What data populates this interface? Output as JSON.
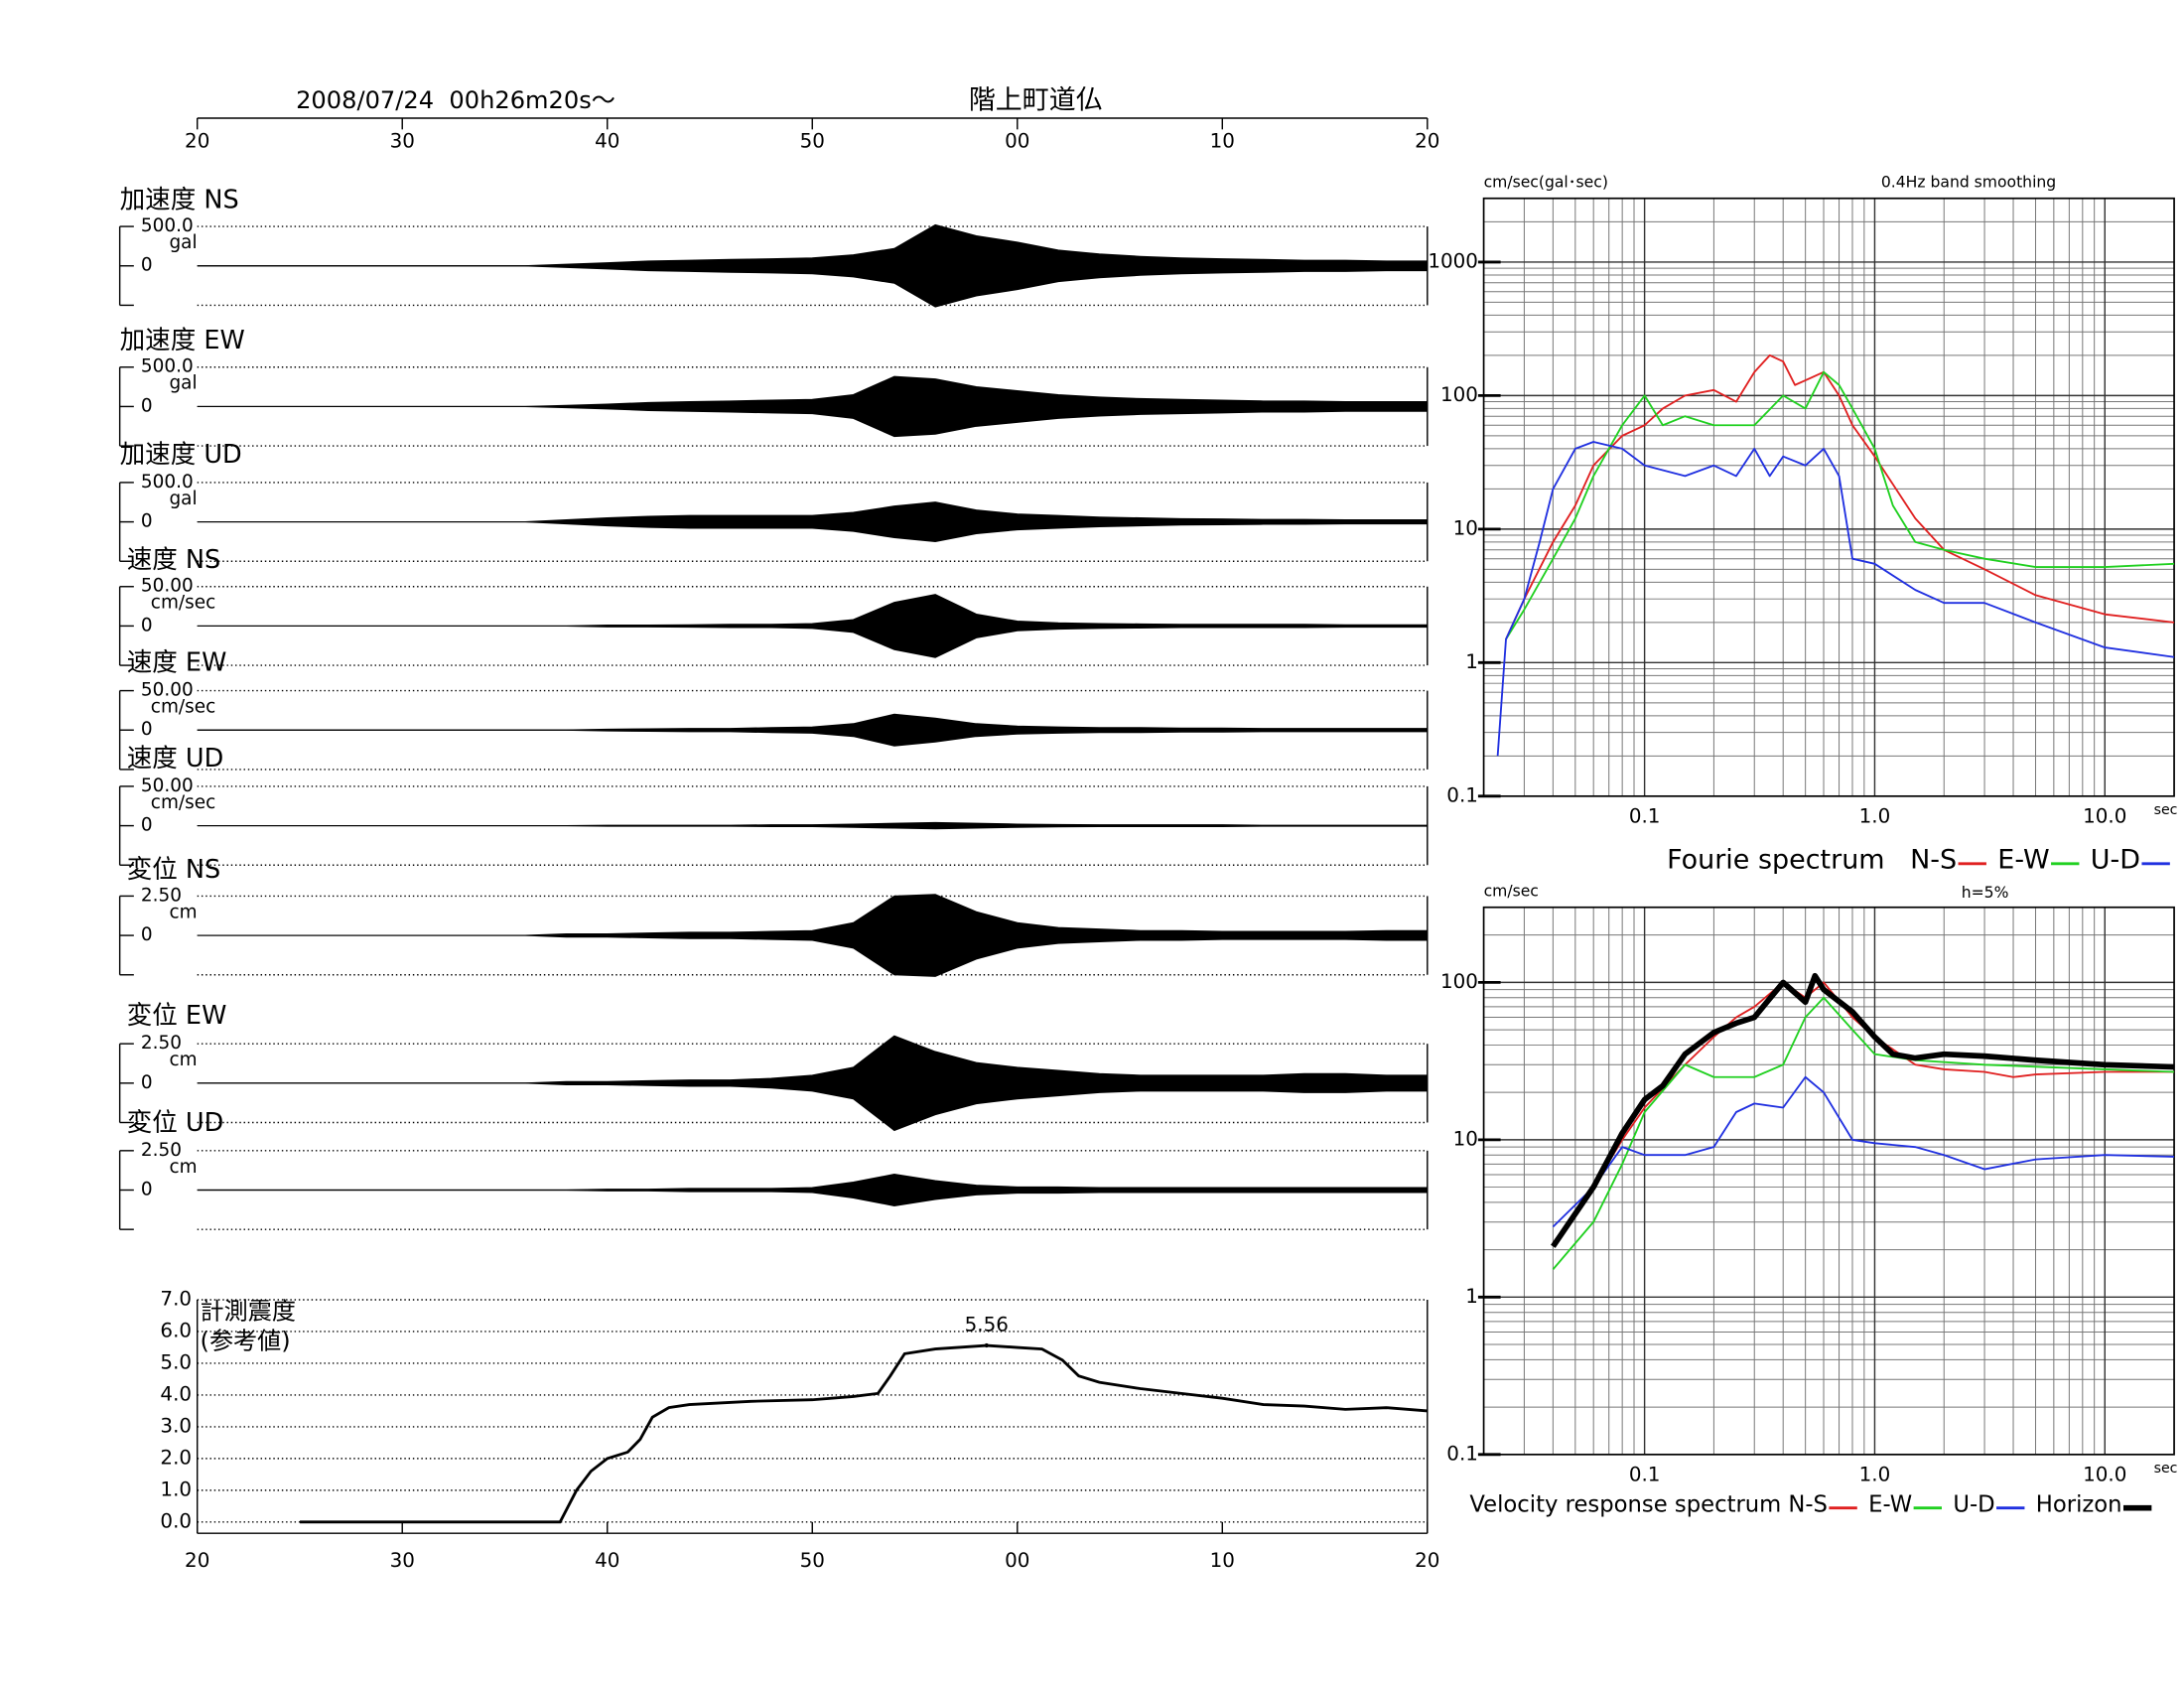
{
  "chart_data": [
    {
      "type": "waveform",
      "title": "2008/07/24  00h26m20s〜",
      "subtitle": "階上町道仏",
      "xlim": [
        0,
        60
      ],
      "xticks": [
        {
          "value": 0,
          "label": "20"
        },
        {
          "value": 10,
          "label": "30"
        },
        {
          "value": 20,
          "label": "40"
        },
        {
          "value": 30,
          "label": "50"
        },
        {
          "value": 40,
          "label": "00"
        },
        {
          "value": 50,
          "label": "10"
        },
        {
          "value": 60,
          "label": "20"
        }
      ],
      "x": [
        0,
        2,
        4,
        6,
        8,
        10,
        12,
        14,
        16,
        18,
        20,
        22,
        24,
        26,
        28,
        30,
        32,
        34,
        36,
        38,
        40,
        42,
        44,
        46,
        48,
        50,
        52,
        54,
        56,
        58,
        60
      ],
      "panels": [
        {
          "name": "加速度 NS",
          "scale": {
            "value": 500,
            "label": "500.0"
          },
          "unit": "gal",
          "zero": 0,
          "values": [
            0,
            0,
            0,
            0,
            0,
            0,
            0,
            0,
            0,
            20,
            40,
            60,
            70,
            80,
            90,
            100,
            140,
            220,
            520,
            380,
            300,
            200,
            150,
            120,
            100,
            90,
            80,
            70,
            70,
            60,
            60
          ]
        },
        {
          "name": "加速度 EW",
          "scale": {
            "value": 500,
            "label": "500.0"
          },
          "unit": "gal",
          "zero": 0,
          "values": [
            0,
            0,
            0,
            0,
            0,
            0,
            0,
            0,
            0,
            15,
            30,
            50,
            60,
            70,
            80,
            90,
            150,
            380,
            350,
            250,
            200,
            150,
            120,
            100,
            90,
            80,
            70,
            70,
            60,
            60,
            60
          ]
        },
        {
          "name": "加速度 UD",
          "scale": {
            "value": 500,
            "label": "500.0"
          },
          "unit": "gal",
          "zero": 0,
          "values": [
            0,
            0,
            0,
            0,
            0,
            0,
            0,
            0,
            0,
            25,
            50,
            70,
            80,
            80,
            80,
            80,
            120,
            200,
            250,
            150,
            100,
            80,
            60,
            50,
            40,
            35,
            30,
            30,
            25,
            25,
            25
          ]
        },
        {
          "name": "速度 NS",
          "scale": {
            "value": 50,
            "label": "50.00"
          },
          "unit": "cm/sec",
          "zero": 0,
          "values": [
            0,
            0,
            0,
            0,
            0,
            0,
            0,
            0,
            0,
            0,
            1,
            1,
            1.5,
            2,
            2,
            3,
            8,
            30,
            40,
            15,
            6,
            4,
            3,
            2.5,
            2,
            2,
            2,
            2,
            1.5,
            1.5,
            1.5
          ]
        },
        {
          "name": "速度 EW",
          "scale": {
            "value": 50,
            "label": "50.00"
          },
          "unit": "cm/sec",
          "zero": 0,
          "values": [
            0,
            0,
            0,
            0,
            0,
            0,
            0,
            0,
            0,
            0,
            1,
            1.5,
            2,
            2,
            3,
            4,
            8,
            20,
            15,
            8,
            5,
            4,
            3,
            3,
            2.5,
            2.5,
            2,
            2,
            2,
            2,
            2
          ]
        },
        {
          "name": "速度 UD",
          "scale": {
            "value": 50,
            "label": "50.00"
          },
          "unit": "cm/sec",
          "zero": 0,
          "values": [
            0,
            0,
            0,
            0,
            0,
            0,
            0,
            0,
            0,
            0,
            0.5,
            0.5,
            0.5,
            0.5,
            1,
            1,
            2,
            3,
            4,
            3,
            2,
            1.5,
            1,
            1,
            1,
            1,
            0.5,
            0.5,
            0.5,
            0.5,
            0.5
          ]
        },
        {
          "name": "変位 NS",
          "scale": {
            "value": 2.5,
            "label": "2.50"
          },
          "unit": "cm",
          "zero": 0,
          "values": [
            0,
            0,
            0,
            0,
            0,
            0,
            0,
            0,
            0,
            0.1,
            0.1,
            0.15,
            0.2,
            0.2,
            0.25,
            0.3,
            0.8,
            2.5,
            2.6,
            1.5,
            0.8,
            0.5,
            0.4,
            0.3,
            0.3,
            0.25,
            0.25,
            0.25,
            0.25,
            0.3,
            0.3
          ]
        },
        {
          "name": "変位 EW",
          "scale": {
            "value": 2.5,
            "label": "2.50"
          },
          "unit": "cm",
          "zero": 0,
          "values": [
            0,
            0,
            0,
            0,
            0,
            0,
            0,
            0,
            0,
            0.1,
            0.1,
            0.15,
            0.2,
            0.2,
            0.3,
            0.5,
            1.0,
            3.0,
            2.0,
            1.3,
            1.0,
            0.8,
            0.6,
            0.5,
            0.5,
            0.5,
            0.5,
            0.6,
            0.6,
            0.5,
            0.5
          ]
        },
        {
          "name": "変位 UD",
          "scale": {
            "value": 2.5,
            "label": "2.50"
          },
          "unit": "cm",
          "zero": 0,
          "values": [
            0,
            0,
            0,
            0,
            0,
            0,
            0,
            0,
            0,
            0,
            0.05,
            0.05,
            0.1,
            0.1,
            0.1,
            0.15,
            0.5,
            1.0,
            0.6,
            0.3,
            0.2,
            0.2,
            0.15,
            0.15,
            0.15,
            0.15,
            0.15,
            0.15,
            0.15,
            0.15,
            0.15
          ]
        }
      ]
    },
    {
      "type": "line",
      "title": "計測震度",
      "subtitle": "(参考値)",
      "xlim": [
        0,
        60
      ],
      "xticks": [
        {
          "value": 0,
          "label": "20"
        },
        {
          "value": 10,
          "label": "30"
        },
        {
          "value": 20,
          "label": "40"
        },
        {
          "value": 30,
          "label": "50"
        },
        {
          "value": 40,
          "label": "00"
        },
        {
          "value": 50,
          "label": "10"
        },
        {
          "value": 60,
          "label": "20"
        }
      ],
      "ylim": [
        0,
        7
      ],
      "yticks": [
        {
          "value": 0,
          "label": "0.0"
        },
        {
          "value": 1,
          "label": "1.0"
        },
        {
          "value": 2,
          "label": "2.0"
        },
        {
          "value": 3,
          "label": "3.0"
        },
        {
          "value": 4,
          "label": "4.0"
        },
        {
          "value": 5,
          "label": "5.0"
        },
        {
          "value": 6,
          "label": "6.0"
        },
        {
          "value": 7,
          "label": "7.0"
        }
      ],
      "grid": true,
      "x": [
        5,
        17.7,
        18.5,
        19.2,
        20,
        21,
        21.6,
        22.2,
        23,
        24,
        27,
        30,
        32,
        33.2,
        33.8,
        34.5,
        36,
        38.5,
        40,
        41.2,
        42.2,
        43,
        44,
        46,
        48,
        50,
        52,
        54,
        56,
        58,
        60
      ],
      "values": [
        0,
        0,
        1.0,
        1.6,
        2.0,
        2.2,
        2.6,
        3.3,
        3.6,
        3.7,
        3.8,
        3.85,
        3.95,
        4.05,
        4.6,
        5.3,
        5.45,
        5.56,
        5.5,
        5.45,
        5.1,
        4.6,
        4.4,
        4.2,
        4.05,
        3.9,
        3.7,
        3.65,
        3.55,
        3.6,
        3.5
      ],
      "peak": {
        "x": 38.5,
        "value": 5.56
      }
    },
    {
      "type": "line",
      "title": "Fourie spectrum",
      "ylabel": "cm/sec(gal･sec)",
      "note": "0.4Hz band smoothing",
      "xlabel": "sec",
      "log": true,
      "grid": true,
      "xlim": [
        0.02,
        20
      ],
      "xticks": [
        0.1,
        {
          "value": 1,
          "label": "1.0"
        },
        {
          "value": 10,
          "label": "10.0"
        }
      ],
      "ylim": [
        0.1,
        3000
      ],
      "yticks": [
        0.1,
        1,
        10,
        100,
        1000
      ],
      "series": [
        {
          "name": "N-S",
          "color": "#e02020",
          "x": [
            0.025,
            0.03,
            0.04,
            0.05,
            0.06,
            0.08,
            0.1,
            0.12,
            0.15,
            0.2,
            0.25,
            0.3,
            0.35,
            0.4,
            0.45,
            0.5,
            0.6,
            0.7,
            0.8,
            1.0,
            1.5,
            2,
            3,
            5,
            10,
            20
          ],
          "values": [
            1.5,
            3,
            8,
            15,
            30,
            50,
            60,
            80,
            100,
            110,
            90,
            150,
            200,
            180,
            120,
            130,
            150,
            100,
            60,
            35,
            12,
            7,
            5,
            3.2,
            2.3,
            2.0
          ]
        },
        {
          "name": "E-W",
          "color": "#20d020",
          "x": [
            0.025,
            0.03,
            0.04,
            0.05,
            0.06,
            0.08,
            0.1,
            0.12,
            0.15,
            0.2,
            0.3,
            0.4,
            0.5,
            0.6,
            0.7,
            0.8,
            1.0,
            1.2,
            1.5,
            2,
            3,
            5,
            10,
            20
          ],
          "values": [
            1.5,
            2.5,
            6,
            12,
            25,
            60,
            100,
            60,
            70,
            60,
            60,
            100,
            80,
            150,
            120,
            80,
            40,
            15,
            8,
            7,
            6,
            5.2,
            5.2,
            5.5
          ]
        },
        {
          "name": "U-D",
          "color": "#2030e0",
          "x": [
            0.023,
            0.025,
            0.03,
            0.035,
            0.04,
            0.05,
            0.06,
            0.08,
            0.1,
            0.15,
            0.2,
            0.25,
            0.3,
            0.35,
            0.4,
            0.5,
            0.6,
            0.7,
            0.8,
            1.0,
            1.5,
            2,
            3,
            5,
            10,
            20
          ],
          "values": [
            0.2,
            1.5,
            3,
            8,
            20,
            40,
            45,
            40,
            30,
            25,
            30,
            25,
            40,
            25,
            35,
            30,
            40,
            25,
            6,
            5.5,
            3.5,
            2.8,
            2.8,
            2,
            1.3,
            1.1
          ]
        }
      ]
    },
    {
      "type": "line",
      "title": "Velocity response spectrum",
      "ylabel": "cm/sec",
      "note": "h=5%",
      "xlabel": "sec",
      "log": true,
      "grid": true,
      "xlim": [
        0.02,
        20
      ],
      "xticks": [
        0.1,
        {
          "value": 1,
          "label": "1.0"
        },
        {
          "value": 10,
          "label": "10.0"
        }
      ],
      "ylim": [
        0.1,
        300
      ],
      "yticks": [
        0.1,
        1,
        10,
        100
      ],
      "series": [
        {
          "name": "N-S",
          "color": "#e02020",
          "x": [
            0.04,
            0.06,
            0.08,
            0.1,
            0.15,
            0.2,
            0.25,
            0.3,
            0.4,
            0.5,
            0.6,
            0.8,
            1.0,
            1.5,
            2,
            3,
            4,
            5,
            10,
            20
          ],
          "values": [
            2.2,
            5,
            10,
            16,
            30,
            45,
            60,
            70,
            100,
            80,
            100,
            60,
            45,
            30,
            28,
            27,
            25,
            26,
            27,
            27
          ]
        },
        {
          "name": "E-W",
          "color": "#20d020",
          "x": [
            0.04,
            0.06,
            0.08,
            0.1,
            0.15,
            0.2,
            0.3,
            0.4,
            0.5,
            0.6,
            0.8,
            1.0,
            1.5,
            3,
            10,
            20
          ],
          "values": [
            1.5,
            3,
            7,
            15,
            30,
            25,
            25,
            30,
            60,
            80,
            50,
            35,
            32,
            30,
            28,
            27
          ]
        },
        {
          "name": "U-D",
          "color": "#2030e0",
          "x": [
            0.04,
            0.06,
            0.08,
            0.1,
            0.15,
            0.2,
            0.25,
            0.3,
            0.4,
            0.5,
            0.6,
            0.8,
            1.0,
            1.5,
            2,
            3,
            5,
            10,
            20
          ],
          "values": [
            2.8,
            5,
            9,
            8,
            8,
            9,
            15,
            17,
            16,
            25,
            20,
            10,
            9.5,
            9,
            8,
            6.5,
            7.5,
            8,
            7.8
          ]
        },
        {
          "name": "Horizon",
          "color": "#000000",
          "width": 4,
          "x": [
            0.04,
            0.06,
            0.08,
            0.1,
            0.12,
            0.15,
            0.2,
            0.25,
            0.3,
            0.4,
            0.5,
            0.55,
            0.6,
            0.8,
            1.0,
            1.2,
            1.5,
            2,
            3,
            5,
            10,
            20
          ],
          "values": [
            2.1,
            5,
            11,
            18,
            22,
            35,
            48,
            55,
            60,
            100,
            75,
            110,
            90,
            65,
            45,
            35,
            33,
            35,
            34,
            32,
            30,
            29
          ]
        }
      ]
    }
  ]
}
